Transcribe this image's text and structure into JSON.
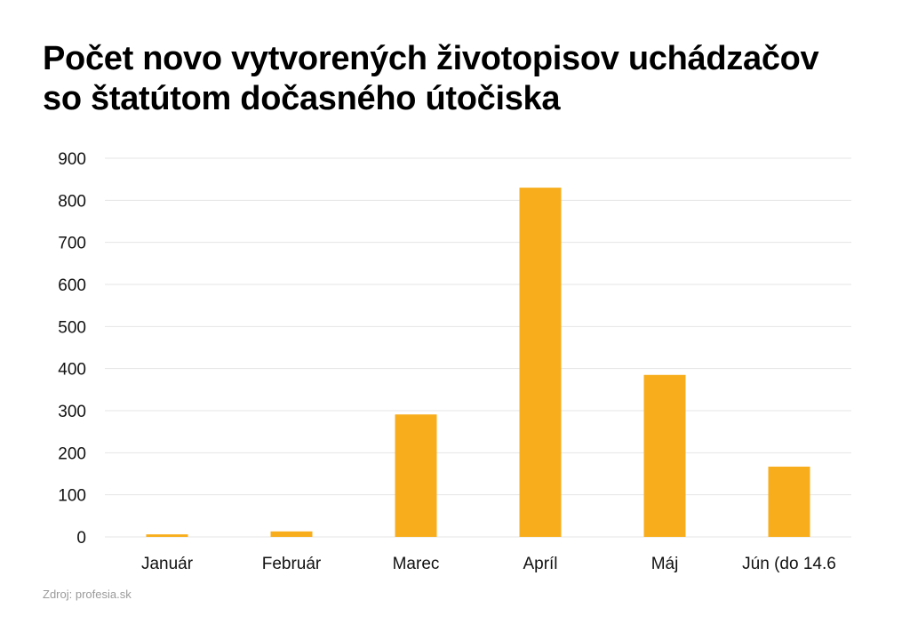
{
  "title_lines": [
    "Počet novo vytvorených životopisov uchádzačov",
    "so štatútom dočasného útočiska"
  ],
  "source": "Zdroj: profesia.sk",
  "colors": {
    "bar": "#F8AE1C",
    "grid": "#E5E5E5",
    "text": "#111111"
  },
  "chart_data": {
    "type": "bar",
    "title": "Počet novo vytvorených životopisov uchádzačov so štatútom dočasného útočiska",
    "xlabel": "",
    "ylabel": "",
    "categories": [
      "Január",
      "Február",
      "Marec",
      "Apríl",
      "Máj",
      "Jún (do 14.6"
    ],
    "values": [
      6,
      13,
      291,
      830,
      385,
      167
    ],
    "ylim": [
      0,
      900
    ],
    "yticks": [
      0,
      100,
      200,
      300,
      400,
      500,
      600,
      700,
      800,
      900
    ],
    "grid": true,
    "legend": "none"
  }
}
